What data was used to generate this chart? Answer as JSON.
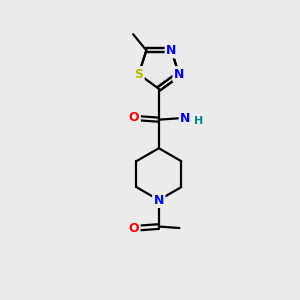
{
  "background_color": "#ebebeb",
  "bond_color": "#000000",
  "atom_colors": {
    "N": "#0000ff",
    "O": "#ff0000",
    "S": "#b8b800",
    "H": "#008888"
  },
  "figsize": [
    3.0,
    3.0
  ],
  "dpi": 100,
  "lw": 1.6,
  "fontsize": 9
}
